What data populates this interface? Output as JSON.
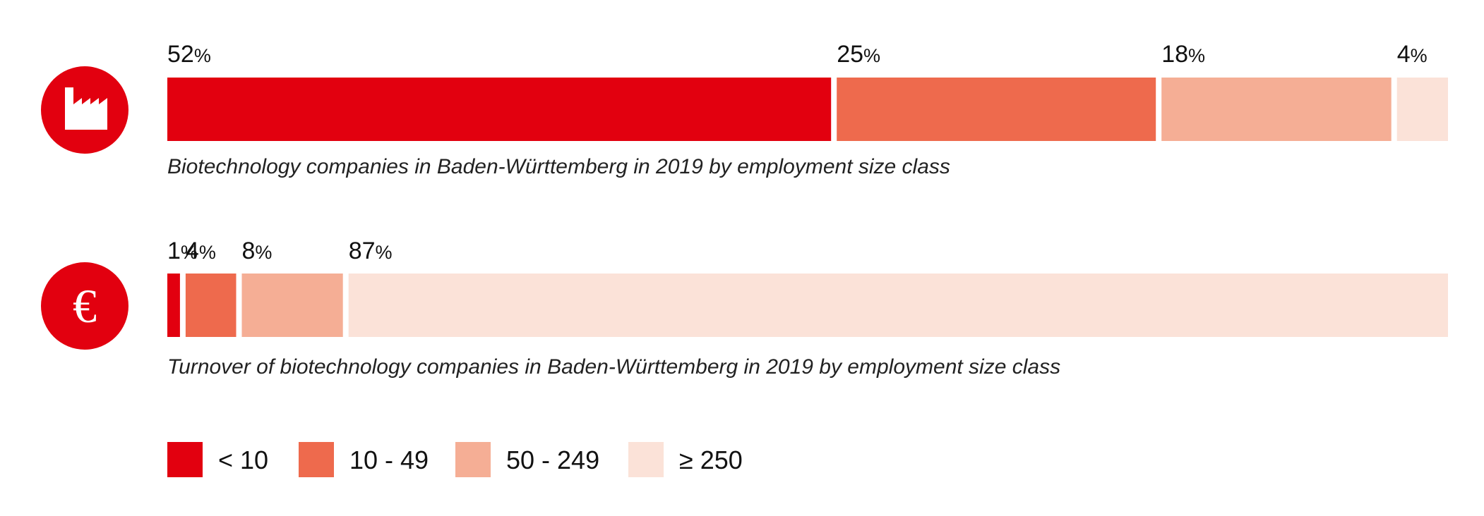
{
  "chart_data": [
    {
      "type": "bar",
      "orientation": "horizontal",
      "stacked": true,
      "icon": "factory-icon",
      "categories": [
        "< 10",
        "10 - 49",
        "50 - 249",
        "≥ 250"
      ],
      "values": [
        52,
        25,
        18,
        4
      ],
      "value_labels": [
        "52",
        "25",
        "18",
        "4"
      ],
      "unit": "%",
      "caption": "Biotechnology companies in Baden-Württemberg in 2019 by employment size class"
    },
    {
      "type": "bar",
      "orientation": "horizontal",
      "stacked": true,
      "icon": "euro-icon",
      "categories": [
        "< 10",
        "10 - 49",
        "50 - 249",
        "≥ 250"
      ],
      "values": [
        1,
        4,
        8,
        87
      ],
      "value_labels": [
        "1",
        "4",
        "8",
        "87"
      ],
      "unit": "%",
      "caption": "Turnover of biotechnology companies in Baden-Württemberg in 2019 by employment size class"
    }
  ],
  "legend": {
    "items": [
      {
        "label": "< 10",
        "color": "#e2000f"
      },
      {
        "label": "10 - 49",
        "color": "#ee6a4d"
      },
      {
        "label": "50 - 249",
        "color": "#f5ae95"
      },
      {
        "label": "≥ 250",
        "color": "#fbe2d8"
      }
    ]
  },
  "colors": {
    "icon_circle": "#e2000f",
    "icon_glyph": "#ffffff"
  }
}
